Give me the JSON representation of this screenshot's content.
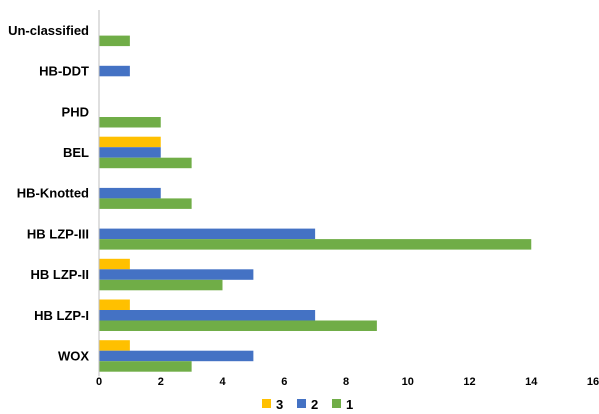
{
  "chart_data": {
    "type": "bar",
    "orientation": "horizontal",
    "categories": [
      "Un-classified",
      "HB-DDT",
      "PHD",
      "BEL",
      "HB-Knotted",
      "HB LZP-III",
      "HB LZP-II",
      "HB LZP-I",
      "WOX"
    ],
    "series": [
      {
        "name": "3",
        "color": "#FFC000",
        "values": [
          0,
          0,
          0,
          2,
          0,
          0,
          1,
          1,
          1
        ]
      },
      {
        "name": "2",
        "color": "#4472C4",
        "values": [
          0,
          1,
          0,
          2,
          2,
          7,
          5,
          7,
          5
        ]
      },
      {
        "name": "1",
        "color": "#70AD47",
        "values": [
          1,
          0,
          2,
          3,
          3,
          14,
          4,
          9,
          3
        ]
      }
    ],
    "xlim": [
      0,
      16
    ],
    "xticks": [
      "0",
      "2",
      "4",
      "6",
      "8",
      "10",
      "12",
      "14",
      "16"
    ],
    "legend_order": [
      "3",
      "2",
      "1"
    ],
    "legend_position": "bottom",
    "grid": false
  }
}
